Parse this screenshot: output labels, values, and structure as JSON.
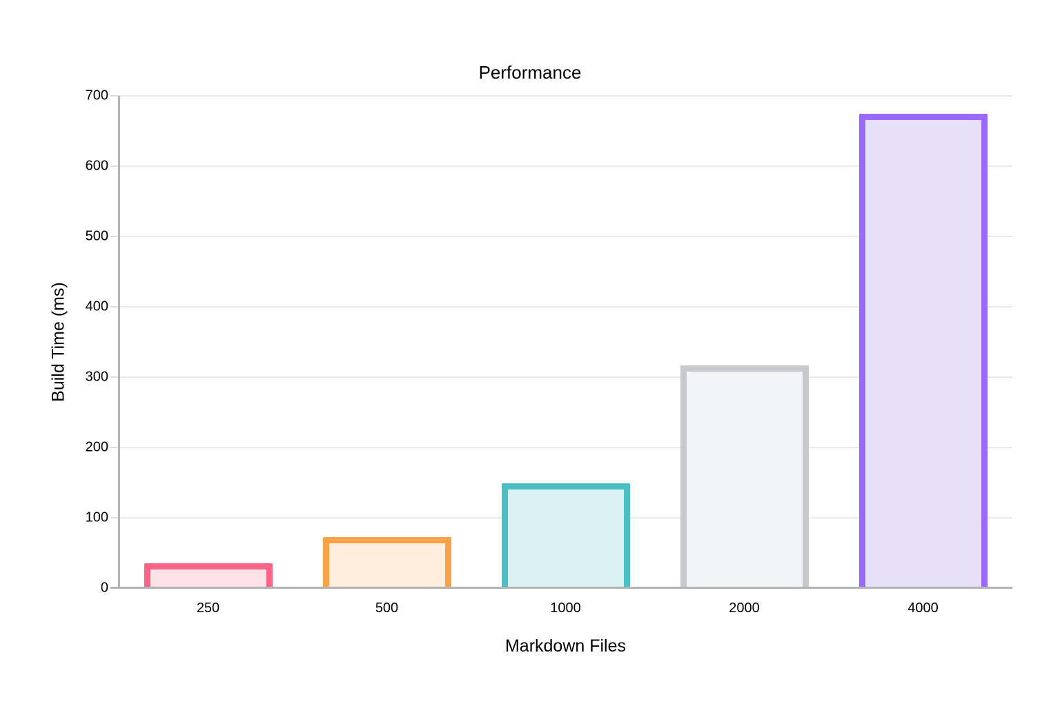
{
  "chart_data": {
    "type": "bar",
    "title": "Performance",
    "xlabel": "Markdown Files",
    "ylabel": "Build Time (ms)",
    "categories": [
      "250",
      "500",
      "1000",
      "2000",
      "4000"
    ],
    "values": [
      35,
      73,
      149,
      317,
      675
    ],
    "ylim": [
      0,
      700
    ],
    "yticks": [
      0,
      100,
      200,
      300,
      400,
      500,
      600,
      700
    ],
    "grid": true,
    "legend": false,
    "bar_styles": [
      {
        "name": "pink",
        "stroke": "#fb6486",
        "fill": "#fde2ea"
      },
      {
        "name": "orange",
        "stroke": "#fba147",
        "fill": "#fdeedd"
      },
      {
        "name": "teal",
        "stroke": "#49bfc4",
        "fill": "#dcf1f3"
      },
      {
        "name": "gray",
        "stroke": "#c7c9ce",
        "fill": "#f2f3f4"
      },
      {
        "name": "purple",
        "stroke": "#9a68fb",
        "fill": "#e7e0fb"
      }
    ],
    "colors": {
      "axis_line": "#b4b4b7",
      "gridline": "#e9e9eb",
      "tick_mark": "#dcdcde",
      "text": "#000000",
      "background": "#ffffff"
    }
  }
}
